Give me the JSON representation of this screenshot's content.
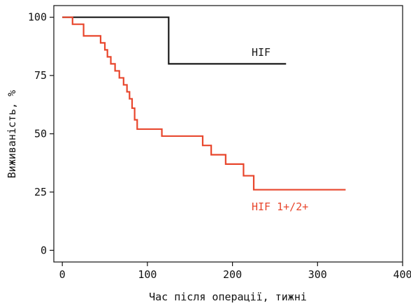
{
  "chart_data": {
    "type": "line",
    "step": "post",
    "title": "",
    "xlabel": "Час після операції, тижні",
    "ylabel": "Виживаність, %",
    "xlim": [
      -10,
      400
    ],
    "ylim": [
      -5,
      105
    ],
    "xticks": [
      0,
      100,
      200,
      300,
      400
    ],
    "yticks": [
      0,
      25,
      50,
      75,
      100
    ],
    "xtick_labels": [
      "0",
      "100",
      "200",
      "300",
      "400"
    ],
    "ytick_labels": [
      "0",
      "25",
      "50",
      "75",
      "100"
    ],
    "grid": false,
    "legend": "none",
    "series": [
      {
        "name": "HIF",
        "color": "#1a1a1a",
        "x": [
          0,
          125,
          263
        ],
        "y": [
          100,
          80,
          80
        ]
      },
      {
        "name": "HIF 1+/2+",
        "color": "#e8462c",
        "x": [
          0,
          12,
          25,
          45,
          50,
          53,
          57,
          62,
          67,
          72,
          76,
          79,
          82,
          85,
          88,
          97,
          117,
          134,
          165,
          175,
          192,
          213,
          225,
          333
        ],
        "y": [
          100,
          97,
          92,
          89,
          86,
          83,
          80,
          77,
          74,
          71,
          68,
          65,
          61,
          56,
          52,
          52,
          49,
          49,
          45,
          41,
          37,
          32,
          26,
          26
        ]
      }
    ]
  }
}
